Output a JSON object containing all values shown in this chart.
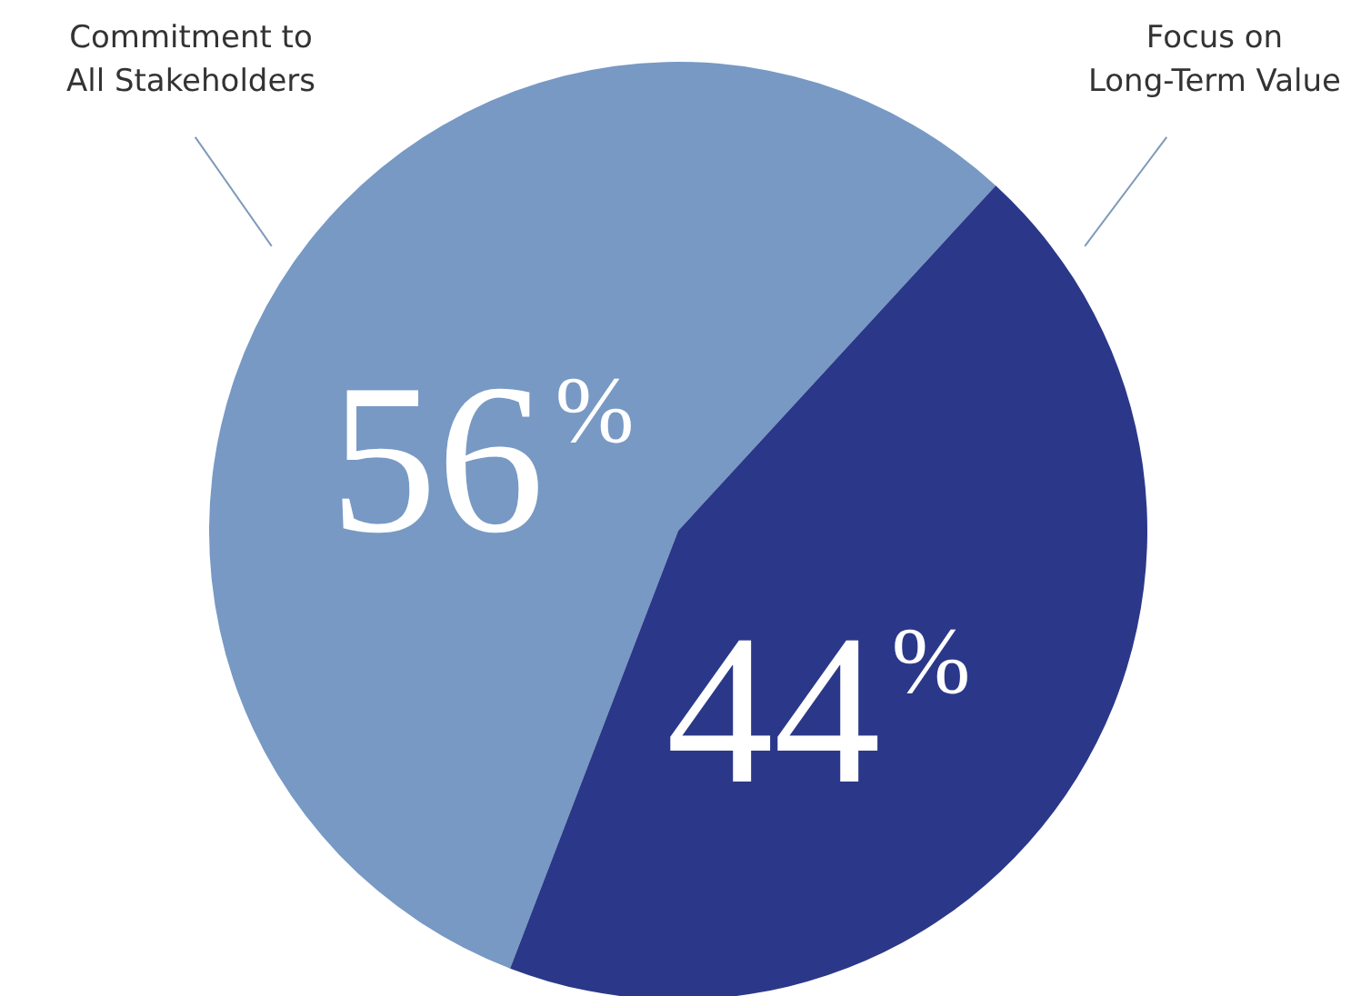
{
  "chart_data": {
    "type": "pie",
    "categories": [
      "Commitment to All Stakeholders",
      "Focus on Long-Term Value"
    ],
    "values": [
      56,
      44
    ],
    "colors": [
      "#7799c4",
      "#2b3889"
    ],
    "value_labels": [
      "56$^{%}$",
      "44$^{%}$"
    ]
  }
}
